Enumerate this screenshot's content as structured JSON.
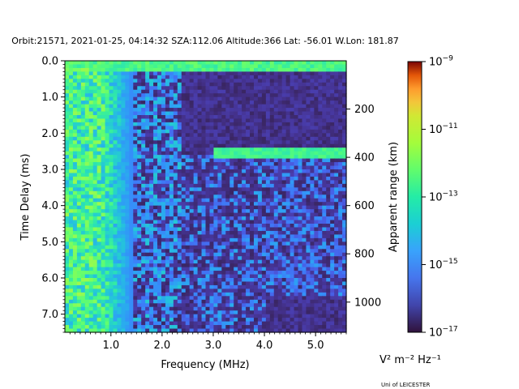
{
  "chart_data": {
    "type": "heatmap",
    "title": "Orbit:21571, 2021-01-25, 04:14:32 SZA:112.06 Altitude:366 Lat: -56.01 W.Lon: 181.87",
    "xlabel": "Frequency (MHz)",
    "ylabel": "Time Delay (ms)",
    "y2label": "Apparent range (km)",
    "xlim": [
      0.1,
      5.6
    ],
    "ylim": [
      7.5,
      0.0
    ],
    "x_ticks": [
      1.0,
      2.0,
      3.0,
      4.0,
      5.0
    ],
    "x_tick_labels": [
      "1.0",
      "2.0",
      "3.0",
      "4.0",
      "5.0"
    ],
    "y_ticks": [
      0.0,
      1.0,
      2.0,
      3.0,
      4.0,
      5.0,
      6.0,
      7.0
    ],
    "y_tick_labels": [
      "0.0",
      "1.0",
      "2.0",
      "3.0",
      "4.0",
      "5.0",
      "6.0",
      "7.0"
    ],
    "y2_ticks": [
      200,
      400,
      600,
      800,
      1000
    ],
    "y2_tick_labels": [
      "200",
      "400",
      "600",
      "800",
      "1000"
    ],
    "y2_km_per_ms": 150,
    "colorbar": {
      "scale": "log",
      "min_exp": -17,
      "max_exp": -9,
      "tick_exps": [
        -17,
        -15,
        -13,
        -11,
        -9
      ],
      "tick_labels": [
        {
          "base": "10",
          "exp": "−17"
        },
        {
          "base": "10",
          "exp": "−15"
        },
        {
          "base": "10",
          "exp": "−13"
        },
        {
          "base": "10",
          "exp": "−11"
        },
        {
          "base": "10",
          "exp": "−9"
        }
      ],
      "unit_label": "V² m⁻² Hz⁻¹",
      "colormap": "turbo"
    },
    "features": [
      {
        "name": "low-frequency-noise-band",
        "x_range": [
          0.1,
          1.4
        ],
        "level_exp": -13.5
      },
      {
        "name": "surface-echo",
        "delay_ms": 0.2,
        "x_range": [
          0.1,
          5.6
        ],
        "level_exp": -14.0
      },
      {
        "name": "ionospheric-trace",
        "delay_ms": 2.55,
        "x_range": [
          3.0,
          5.6
        ],
        "level_exp": -14.3
      },
      {
        "name": "background",
        "level_exp": -16.8
      }
    ]
  },
  "footer": {
    "credit": "Uni of LEICESTER"
  }
}
